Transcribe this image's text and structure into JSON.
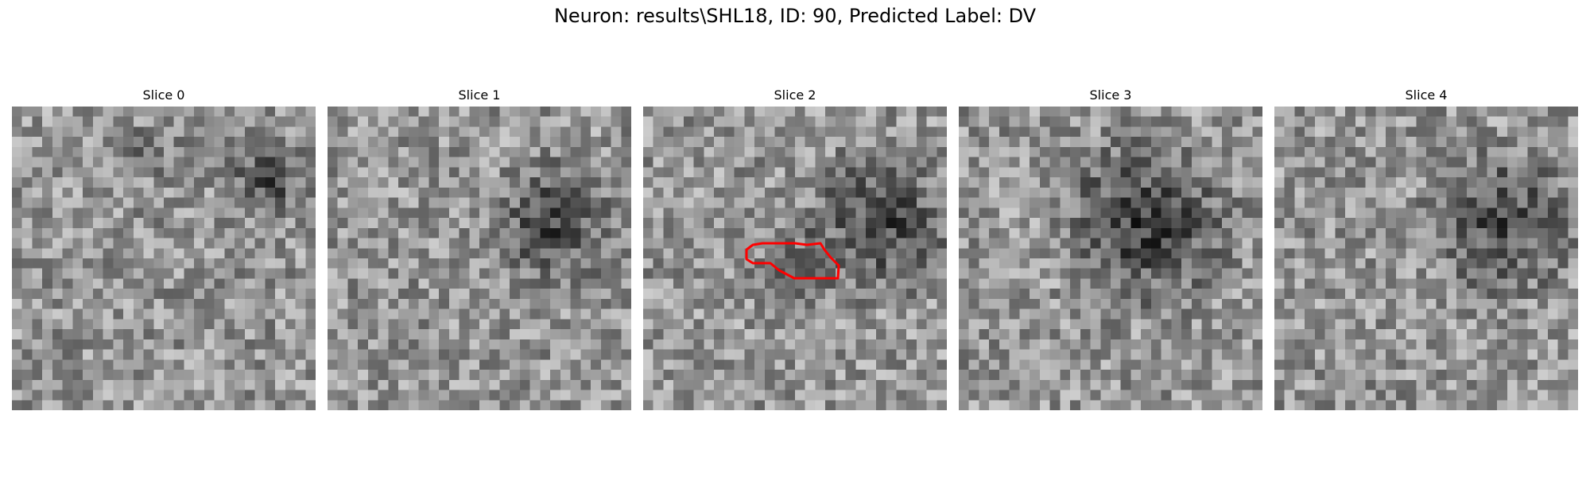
{
  "figure": {
    "title": "Neuron: results\\SHL18, ID: 90, Predicted Label: DV"
  },
  "slices": [
    {
      "label": "Slice 0",
      "has_roi": false
    },
    {
      "label": "Slice 1",
      "has_roi": false
    },
    {
      "label": "Slice 2",
      "has_roi": true
    },
    {
      "label": "Slice 3",
      "has_roi": false
    },
    {
      "label": "Slice 4",
      "has_roi": false
    }
  ],
  "colors": {
    "roi_outline": "#ff0000"
  }
}
